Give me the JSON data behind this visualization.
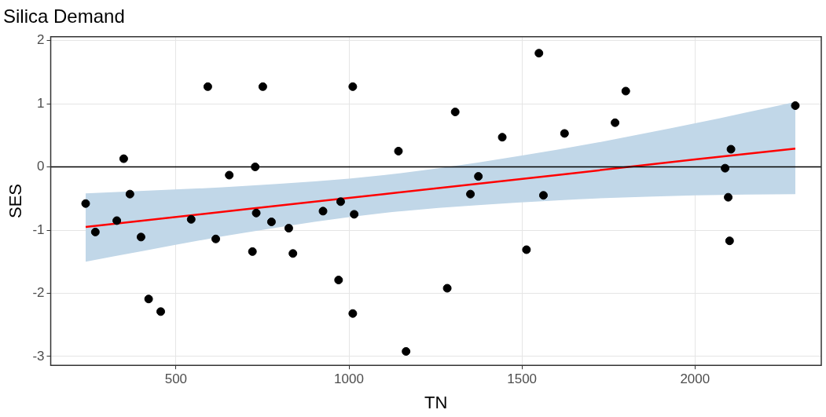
{
  "chart_data": {
    "type": "scatter",
    "title": "Silica Demand",
    "xlabel": "TN",
    "ylabel": "SES",
    "xlim": [
      138,
      2365
    ],
    "xticks": [
      500,
      1000,
      1500,
      2000
    ],
    "ylim": [
      -3.14,
      2.06
    ],
    "yticks": [
      -3,
      -2,
      -1,
      0,
      1,
      2
    ],
    "grid": true,
    "legend": false,
    "ref_lines": [
      {
        "axis": "y",
        "value": 0,
        "color": "#000000"
      }
    ],
    "series": [
      {
        "type": "scatter",
        "color": "#000000",
        "marker": "circle",
        "x": [
          239,
          267,
          329,
          349,
          367,
          399,
          421,
          456,
          544,
          592,
          615,
          654,
          721,
          729,
          732,
          751,
          776,
          826,
          838,
          925,
          970,
          976,
          1011,
          1011,
          1015,
          1143,
          1165,
          1284,
          1307,
          1351,
          1374,
          1443,
          1513,
          1549,
          1562,
          1623,
          1769,
          1800,
          2087,
          2096,
          2100,
          2104,
          2290
        ],
        "values": [
          -0.58,
          -1.03,
          -0.85,
          0.13,
          -0.43,
          -1.11,
          -2.09,
          -2.29,
          -0.83,
          1.27,
          -1.14,
          -0.13,
          -1.34,
          0,
          -0.73,
          1.27,
          -0.87,
          -0.97,
          -1.37,
          -0.7,
          -1.79,
          -0.55,
          1.27,
          -2.32,
          -0.75,
          0.25,
          -2.92,
          -1.92,
          0.87,
          -0.43,
          -0.15,
          0.47,
          -1.31,
          1.8,
          -0.45,
          0.53,
          0.7,
          1.2,
          -0.02,
          -0.48,
          -1.17,
          0.28,
          0.97
        ]
      },
      {
        "type": "line",
        "color": "#ff0000",
        "marker": "none",
        "x": [
          239,
          700,
          1100,
          1600,
          2000,
          2290
        ],
        "values": [
          -0.95,
          -0.67,
          -0.43,
          -0.13,
          0.12,
          0.29
        ],
        "lower": [
          -1.5,
          -1.04,
          -0.73,
          -0.53,
          -0.45,
          -0.43
        ],
        "upper": [
          -0.42,
          -0.3,
          -0.13,
          0.27,
          0.69,
          1.03
        ]
      }
    ]
  }
}
